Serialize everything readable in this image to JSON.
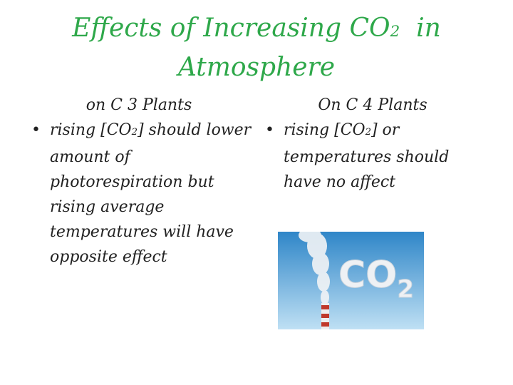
{
  "title": {
    "text": "Effects of Increasing CO",
    "subscript": "2",
    "after": "in",
    "line2": "Atmosphere"
  },
  "columns": [
    {
      "heading": "on C 3 Plants",
      "bullet": {
        "before": "rising [CO",
        "subscript": "2",
        "after": "] should lower amount of photorespiration but rising average temperatures will have opposite effect"
      }
    },
    {
      "heading": "On C 4 Plants",
      "bullet": {
        "before": "rising [CO",
        "subscript": "2",
        "after": "] or temperatures should have no affect"
      }
    }
  ],
  "image": {
    "label": "CO",
    "subscript": "2"
  }
}
